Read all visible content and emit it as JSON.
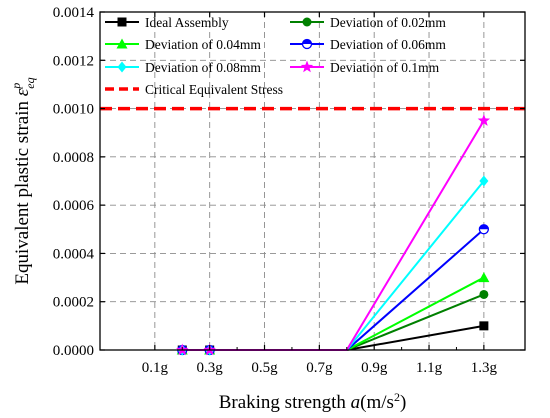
{
  "chart_data": {
    "type": "line",
    "xlabel_main": "Braking strength ",
    "xlabel_var": "a",
    "xlabel_unit_open": "(m/s",
    "xlabel_unit_sup": "2",
    "xlabel_unit_close": ")",
    "ylabel_main": "Equivalent plastic strain ",
    "ylabel_var": "ε",
    "ylabel_sub": "eq",
    "ylabel_sup": "p",
    "x_ticks": [
      {
        "value": 0.1,
        "label": "0.1g"
      },
      {
        "value": 0.3,
        "label": "0.3g"
      },
      {
        "value": 0.5,
        "label": "0.5g"
      },
      {
        "value": 0.7,
        "label": "0.7g"
      },
      {
        "value": 0.9,
        "label": "0.9g"
      },
      {
        "value": 1.1,
        "label": "1.1g"
      },
      {
        "value": 1.3,
        "label": "1.3g"
      }
    ],
    "y_ticks": [
      {
        "value": 0.0,
        "label": "0.0000"
      },
      {
        "value": 0.0002,
        "label": "0.0002"
      },
      {
        "value": 0.0004,
        "label": "0.0004"
      },
      {
        "value": 0.0006,
        "label": "0.0006"
      },
      {
        "value": 0.0008,
        "label": "0.0008"
      },
      {
        "value": 0.001,
        "label": "0.0010"
      },
      {
        "value": 0.0012,
        "label": "0.0012"
      },
      {
        "value": 0.0014,
        "label": "0.0014"
      }
    ],
    "xlim": [
      -0.1,
      1.45
    ],
    "ylim": [
      0,
      0.0014
    ],
    "grid": true,
    "legend_position": "top",
    "series": [
      {
        "name": "Ideal Assembly",
        "color": "#000000",
        "marker": "square",
        "x": [
          0.2,
          0.3,
          0.5,
          0.7,
          0.8,
          1.3
        ],
        "y": [
          0,
          0,
          0,
          0,
          0,
          0.0001
        ]
      },
      {
        "name": "Deviation of 0.02mm",
        "color": "#008000",
        "marker": "circle",
        "x": [
          0.2,
          0.3,
          0.5,
          0.7,
          0.8,
          1.3
        ],
        "y": [
          0,
          0,
          0,
          0,
          0,
          0.00023
        ]
      },
      {
        "name": "Deviation of 0.04mm",
        "color": "#00ff00",
        "marker": "triangle",
        "x": [
          0.2,
          0.3,
          0.5,
          0.7,
          0.8,
          1.3
        ],
        "y": [
          0,
          0,
          0,
          0,
          0,
          0.0003
        ]
      },
      {
        "name": "Deviation of 0.06mm",
        "color": "#0000ff",
        "marker": "half-circle",
        "x": [
          0.2,
          0.3,
          0.5,
          0.7,
          0.8,
          1.3
        ],
        "y": [
          0,
          0,
          0,
          0,
          0,
          0.0005
        ]
      },
      {
        "name": "Deviation of 0.08mm",
        "color": "#00ffff",
        "marker": "diamond",
        "x": [
          0.2,
          0.3,
          0.5,
          0.7,
          0.8,
          1.3
        ],
        "y": [
          0,
          0,
          0,
          0,
          0,
          0.0007
        ]
      },
      {
        "name": "Deviation of 0.1mm",
        "color": "#ff00ff",
        "marker": "star",
        "x": [
          0.2,
          0.3,
          0.5,
          0.7,
          0.8,
          1.3
        ],
        "y": [
          0,
          0,
          0,
          0,
          0,
          0.00095
        ]
      }
    ],
    "reference_line": {
      "name": "Critical Equivalent Stress",
      "y": 0.001,
      "color": "#ff0000",
      "style": "dashed"
    }
  }
}
